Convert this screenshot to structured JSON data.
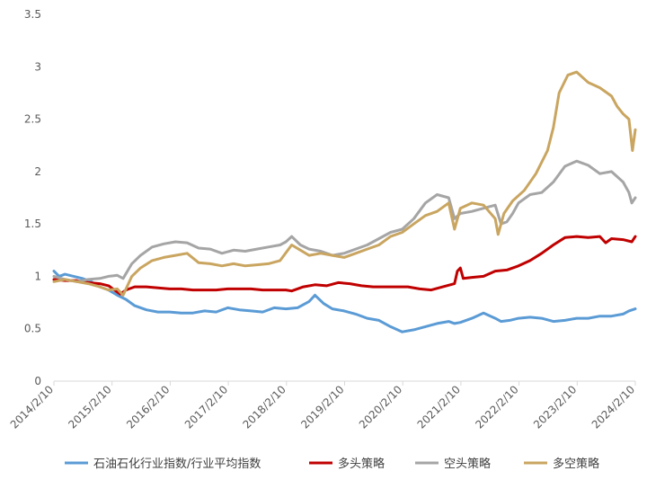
{
  "chart_data": {
    "type": "line",
    "x_tick_labels": [
      "2014/2/10",
      "2015/2/10",
      "2016/2/10",
      "2017/2/10",
      "2018/2/10",
      "2019/2/10",
      "2020/2/10",
      "2021/2/10",
      "2022/2/10",
      "2023/2/10",
      "2024/2/10"
    ],
    "x_range": [
      2014.11,
      2024.11
    ],
    "y_tick_labels": [
      "0",
      "0.5",
      "1",
      "1.5",
      "2",
      "2.5",
      "3",
      "3.5"
    ],
    "ylim": [
      0,
      3.5
    ],
    "grid": false,
    "legend_position": "bottom",
    "series": [
      {
        "name": "石油石化行业指数/行业平均指数",
        "color": "#5b9bd5",
        "x": [
          2014.11,
          2014.2,
          2014.3,
          2014.45,
          2014.6,
          2014.75,
          2014.9,
          2015.05,
          2015.2,
          2015.35,
          2015.5,
          2015.7,
          2015.9,
          2016.1,
          2016.3,
          2016.5,
          2016.7,
          2016.9,
          2017.1,
          2017.3,
          2017.5,
          2017.7,
          2017.9,
          2018.1,
          2018.3,
          2018.5,
          2018.6,
          2018.75,
          2018.9,
          2019.1,
          2019.3,
          2019.5,
          2019.7,
          2019.9,
          2020.1,
          2020.3,
          2020.5,
          2020.7,
          2020.9,
          2021.0,
          2021.1,
          2021.3,
          2021.5,
          2021.7,
          2021.8,
          2021.95,
          2022.1,
          2022.3,
          2022.5,
          2022.7,
          2022.9,
          2023.1,
          2023.3,
          2023.5,
          2023.7,
          2023.9,
          2024.0,
          2024.11
        ],
        "y": [
          1.05,
          1.0,
          1.02,
          1.0,
          0.98,
          0.95,
          0.9,
          0.87,
          0.82,
          0.78,
          0.72,
          0.68,
          0.66,
          0.66,
          0.65,
          0.65,
          0.67,
          0.66,
          0.7,
          0.68,
          0.67,
          0.66,
          0.7,
          0.69,
          0.7,
          0.76,
          0.82,
          0.74,
          0.69,
          0.67,
          0.64,
          0.6,
          0.58,
          0.52,
          0.47,
          0.49,
          0.52,
          0.55,
          0.57,
          0.55,
          0.56,
          0.6,
          0.65,
          0.6,
          0.57,
          0.58,
          0.6,
          0.61,
          0.6,
          0.57,
          0.58,
          0.6,
          0.6,
          0.62,
          0.62,
          0.64,
          0.67,
          0.69
        ]
      },
      {
        "name": "多头策略",
        "color": "#c00000",
        "x": [
          2014.11,
          2014.3,
          2014.5,
          2014.7,
          2014.9,
          2015.05,
          2015.2,
          2015.25,
          2015.35,
          2015.5,
          2015.7,
          2015.9,
          2016.1,
          2016.3,
          2016.5,
          2016.7,
          2016.9,
          2017.1,
          2017.3,
          2017.5,
          2017.7,
          2017.9,
          2018.1,
          2018.2,
          2018.4,
          2018.6,
          2018.8,
          2019.0,
          2019.2,
          2019.4,
          2019.6,
          2019.8,
          2020.0,
          2020.2,
          2020.4,
          2020.6,
          2020.8,
          2021.0,
          2021.05,
          2021.1,
          2021.15,
          2021.3,
          2021.5,
          2021.7,
          2021.9,
          2022.1,
          2022.3,
          2022.5,
          2022.7,
          2022.9,
          2023.1,
          2023.3,
          2023.5,
          2023.6,
          2023.7,
          2023.9,
          2024.05,
          2024.11
        ],
        "y": [
          0.97,
          0.96,
          0.96,
          0.94,
          0.93,
          0.91,
          0.85,
          0.83,
          0.87,
          0.9,
          0.9,
          0.89,
          0.88,
          0.88,
          0.87,
          0.87,
          0.87,
          0.88,
          0.88,
          0.88,
          0.87,
          0.87,
          0.87,
          0.86,
          0.9,
          0.92,
          0.91,
          0.94,
          0.93,
          0.91,
          0.9,
          0.9,
          0.9,
          0.9,
          0.88,
          0.87,
          0.9,
          0.93,
          1.05,
          1.08,
          0.98,
          0.99,
          1.0,
          1.05,
          1.06,
          1.1,
          1.15,
          1.22,
          1.3,
          1.37,
          1.38,
          1.37,
          1.38,
          1.32,
          1.36,
          1.35,
          1.33,
          1.38
        ]
      },
      {
        "name": "空头策略",
        "color": "#a5a5a5",
        "x": [
          2014.11,
          2014.3,
          2014.5,
          2014.7,
          2014.9,
          2015.05,
          2015.2,
          2015.3,
          2015.45,
          2015.6,
          2015.8,
          2016.0,
          2016.2,
          2016.4,
          2016.6,
          2016.8,
          2017.0,
          2017.2,
          2017.4,
          2017.6,
          2017.8,
          2018.0,
          2018.1,
          2018.2,
          2018.35,
          2018.5,
          2018.7,
          2018.9,
          2019.1,
          2019.3,
          2019.5,
          2019.7,
          2019.9,
          2020.1,
          2020.3,
          2020.5,
          2020.7,
          2020.9,
          2021.0,
          2021.1,
          2021.3,
          2021.5,
          2021.7,
          2021.8,
          2021.9,
          2022.0,
          2022.1,
          2022.3,
          2022.5,
          2022.7,
          2022.9,
          2023.1,
          2023.3,
          2023.5,
          2023.7,
          2023.9,
          2024.0,
          2024.05,
          2024.11
        ],
        "y": [
          1.0,
          0.97,
          0.95,
          0.97,
          0.98,
          1.0,
          1.01,
          0.98,
          1.12,
          1.2,
          1.28,
          1.31,
          1.33,
          1.32,
          1.27,
          1.26,
          1.22,
          1.25,
          1.24,
          1.26,
          1.28,
          1.3,
          1.33,
          1.38,
          1.3,
          1.26,
          1.24,
          1.2,
          1.22,
          1.26,
          1.3,
          1.36,
          1.42,
          1.45,
          1.55,
          1.7,
          1.78,
          1.75,
          1.55,
          1.6,
          1.62,
          1.65,
          1.68,
          1.5,
          1.52,
          1.6,
          1.7,
          1.78,
          1.8,
          1.9,
          2.05,
          2.1,
          2.06,
          1.98,
          2.0,
          1.9,
          1.8,
          1.7,
          1.75
        ]
      },
      {
        "name": "多空策略",
        "color": "#c9a560",
        "x": [
          2014.11,
          2014.3,
          2014.5,
          2014.7,
          2014.9,
          2015.05,
          2015.2,
          2015.3,
          2015.45,
          2015.6,
          2015.8,
          2016.0,
          2016.2,
          2016.4,
          2016.6,
          2016.8,
          2017.0,
          2017.2,
          2017.4,
          2017.6,
          2017.8,
          2018.0,
          2018.2,
          2018.35,
          2018.5,
          2018.7,
          2018.9,
          2019.1,
          2019.3,
          2019.5,
          2019.7,
          2019.9,
          2020.1,
          2020.3,
          2020.5,
          2020.7,
          2020.9,
          2021.0,
          2021.1,
          2021.3,
          2021.5,
          2021.7,
          2021.75,
          2021.85,
          2022.0,
          2022.2,
          2022.4,
          2022.6,
          2022.7,
          2022.8,
          2022.95,
          2023.1,
          2023.3,
          2023.5,
          2023.7,
          2023.8,
          2023.9,
          2024.0,
          2024.06,
          2024.11
        ],
        "y": [
          0.95,
          0.97,
          0.95,
          0.93,
          0.9,
          0.87,
          0.88,
          0.82,
          1.0,
          1.08,
          1.15,
          1.18,
          1.2,
          1.22,
          1.13,
          1.12,
          1.1,
          1.12,
          1.1,
          1.11,
          1.12,
          1.15,
          1.3,
          1.25,
          1.2,
          1.22,
          1.2,
          1.18,
          1.22,
          1.26,
          1.3,
          1.38,
          1.42,
          1.5,
          1.58,
          1.62,
          1.7,
          1.45,
          1.65,
          1.7,
          1.68,
          1.55,
          1.4,
          1.6,
          1.72,
          1.82,
          1.98,
          2.2,
          2.42,
          2.75,
          2.92,
          2.95,
          2.85,
          2.8,
          2.72,
          2.62,
          2.55,
          2.5,
          2.2,
          2.4
        ]
      }
    ]
  }
}
